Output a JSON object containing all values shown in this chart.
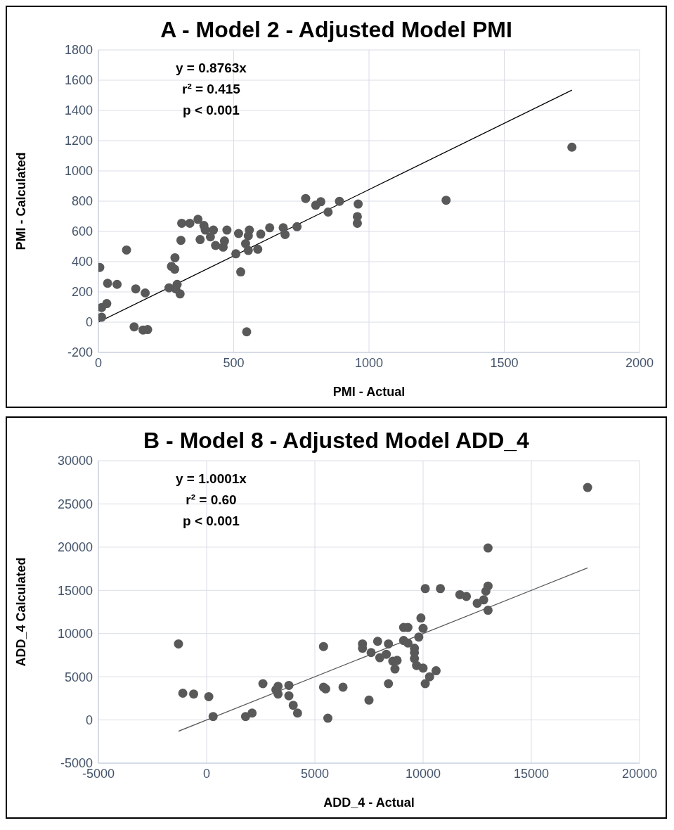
{
  "chart_data": [
    {
      "type": "scatter",
      "title": "A - Model 2 - Adjusted Model PMI",
      "xlabel": "PMI - Actual",
      "ylabel": "PMI - Calculated",
      "annotations": [
        "y = 0.8763x",
        "r² = 0.415",
        "p < 0.001"
      ],
      "xlim": [
        0,
        2000
      ],
      "xticks": [
        0,
        500,
        1000,
        1500,
        2000
      ],
      "ylim": [
        -200,
        1800
      ],
      "yticks": [
        -200,
        0,
        200,
        400,
        600,
        800,
        1000,
        1200,
        1400,
        1600,
        1800
      ],
      "grid": true,
      "series": [
        {
          "marker": "circle",
          "color": "#595959",
          "x": [
            5,
            12,
            31,
            12,
            34,
            69,
            104,
            132,
            138,
            173,
            165,
            182,
            261,
            270,
            282,
            283,
            291,
            302,
            286,
            305,
            308,
            338,
            368,
            376,
            390,
            395,
            414,
            425,
            433,
            461,
            466,
            475,
            508,
            518,
            526,
            544,
            554,
            558,
            554,
            589,
            600,
            633,
            683,
            690,
            734,
            766,
            803,
            822,
            849,
            891,
            960,
            957,
            957,
            548,
            1285,
            1750
          ],
          "values": [
            362,
            97,
            123,
            33,
            257,
            250,
            477,
            -31,
            220,
            193,
            -52,
            -49,
            227,
            369,
            350,
            426,
            250,
            187,
            220,
            541,
            654,
            654,
            680,
            546,
            639,
            609,
            564,
            609,
            507,
            496,
            537,
            609,
            452,
            586,
            332,
            519,
            474,
            609,
            571,
            482,
            582,
            624,
            624,
            579,
            631,
            818,
            773,
            796,
            728,
            799,
            781,
            698,
            654,
            -64,
            806,
            1157
          ]
        },
        {
          "type": "line",
          "marker": "none",
          "color": "#000000",
          "x": [
            0,
            1750
          ],
          "values": [
            0,
            1534
          ]
        }
      ]
    },
    {
      "type": "scatter",
      "title": "B - Model 8 - Adjusted Model ADD_4",
      "xlabel": "ADD_4 - Actual",
      "ylabel": "ADD_4 Calculated",
      "annotations": [
        "y = 1.0001x",
        "r² = 0.60",
        "p < 0.001"
      ],
      "xlim": [
        -5000,
        20000
      ],
      "xticks": [
        -5000,
        0,
        5000,
        10000,
        15000,
        20000
      ],
      "ylim": [
        -5000,
        30000
      ],
      "yticks": [
        -5000,
        0,
        5000,
        10000,
        15000,
        20000,
        25000,
        30000
      ],
      "grid": true,
      "series": [
        {
          "marker": "circle",
          "color": "#595959",
          "x": [
            -1300,
            -1100,
            -600,
            100,
            300,
            1800,
            2100,
            2600,
            3200,
            3300,
            3300,
            3800,
            3800,
            4000,
            4200,
            5400,
            5400,
            5500,
            5600,
            6300,
            7500,
            7200,
            7200,
            7600,
            7900,
            8000,
            8400,
            8300,
            8400,
            8600,
            8800,
            8700,
            9100,
            9300,
            9100,
            9300,
            9600,
            9600,
            9600,
            9700,
            10000,
            9800,
            9900,
            10000,
            10100,
            10100,
            10300,
            10800,
            11700,
            12000,
            12500,
            12800,
            13000,
            12900,
            13000,
            13000,
            17600,
            10600
          ],
          "values": [
            8800,
            3100,
            3000,
            2700,
            400,
            400,
            800,
            4200,
            3500,
            3900,
            3000,
            2800,
            4000,
            1700,
            800,
            8500,
            3800,
            3600,
            200,
            3800,
            2300,
            8800,
            8300,
            7800,
            9100,
            7200,
            8800,
            7600,
            4200,
            6800,
            6900,
            5900,
            10700,
            10700,
            9200,
            8900,
            8300,
            7800,
            7100,
            6300,
            6000,
            9600,
            11800,
            10600,
            15200,
            4200,
            5000,
            15200,
            14500,
            14300,
            13500,
            13900,
            15500,
            14900,
            12700,
            19900,
            26900,
            5700
          ]
        },
        {
          "type": "line",
          "marker": "none",
          "color": "#595959",
          "x": [
            -1300,
            17600
          ],
          "values": [
            -1300,
            17600
          ]
        }
      ]
    }
  ]
}
